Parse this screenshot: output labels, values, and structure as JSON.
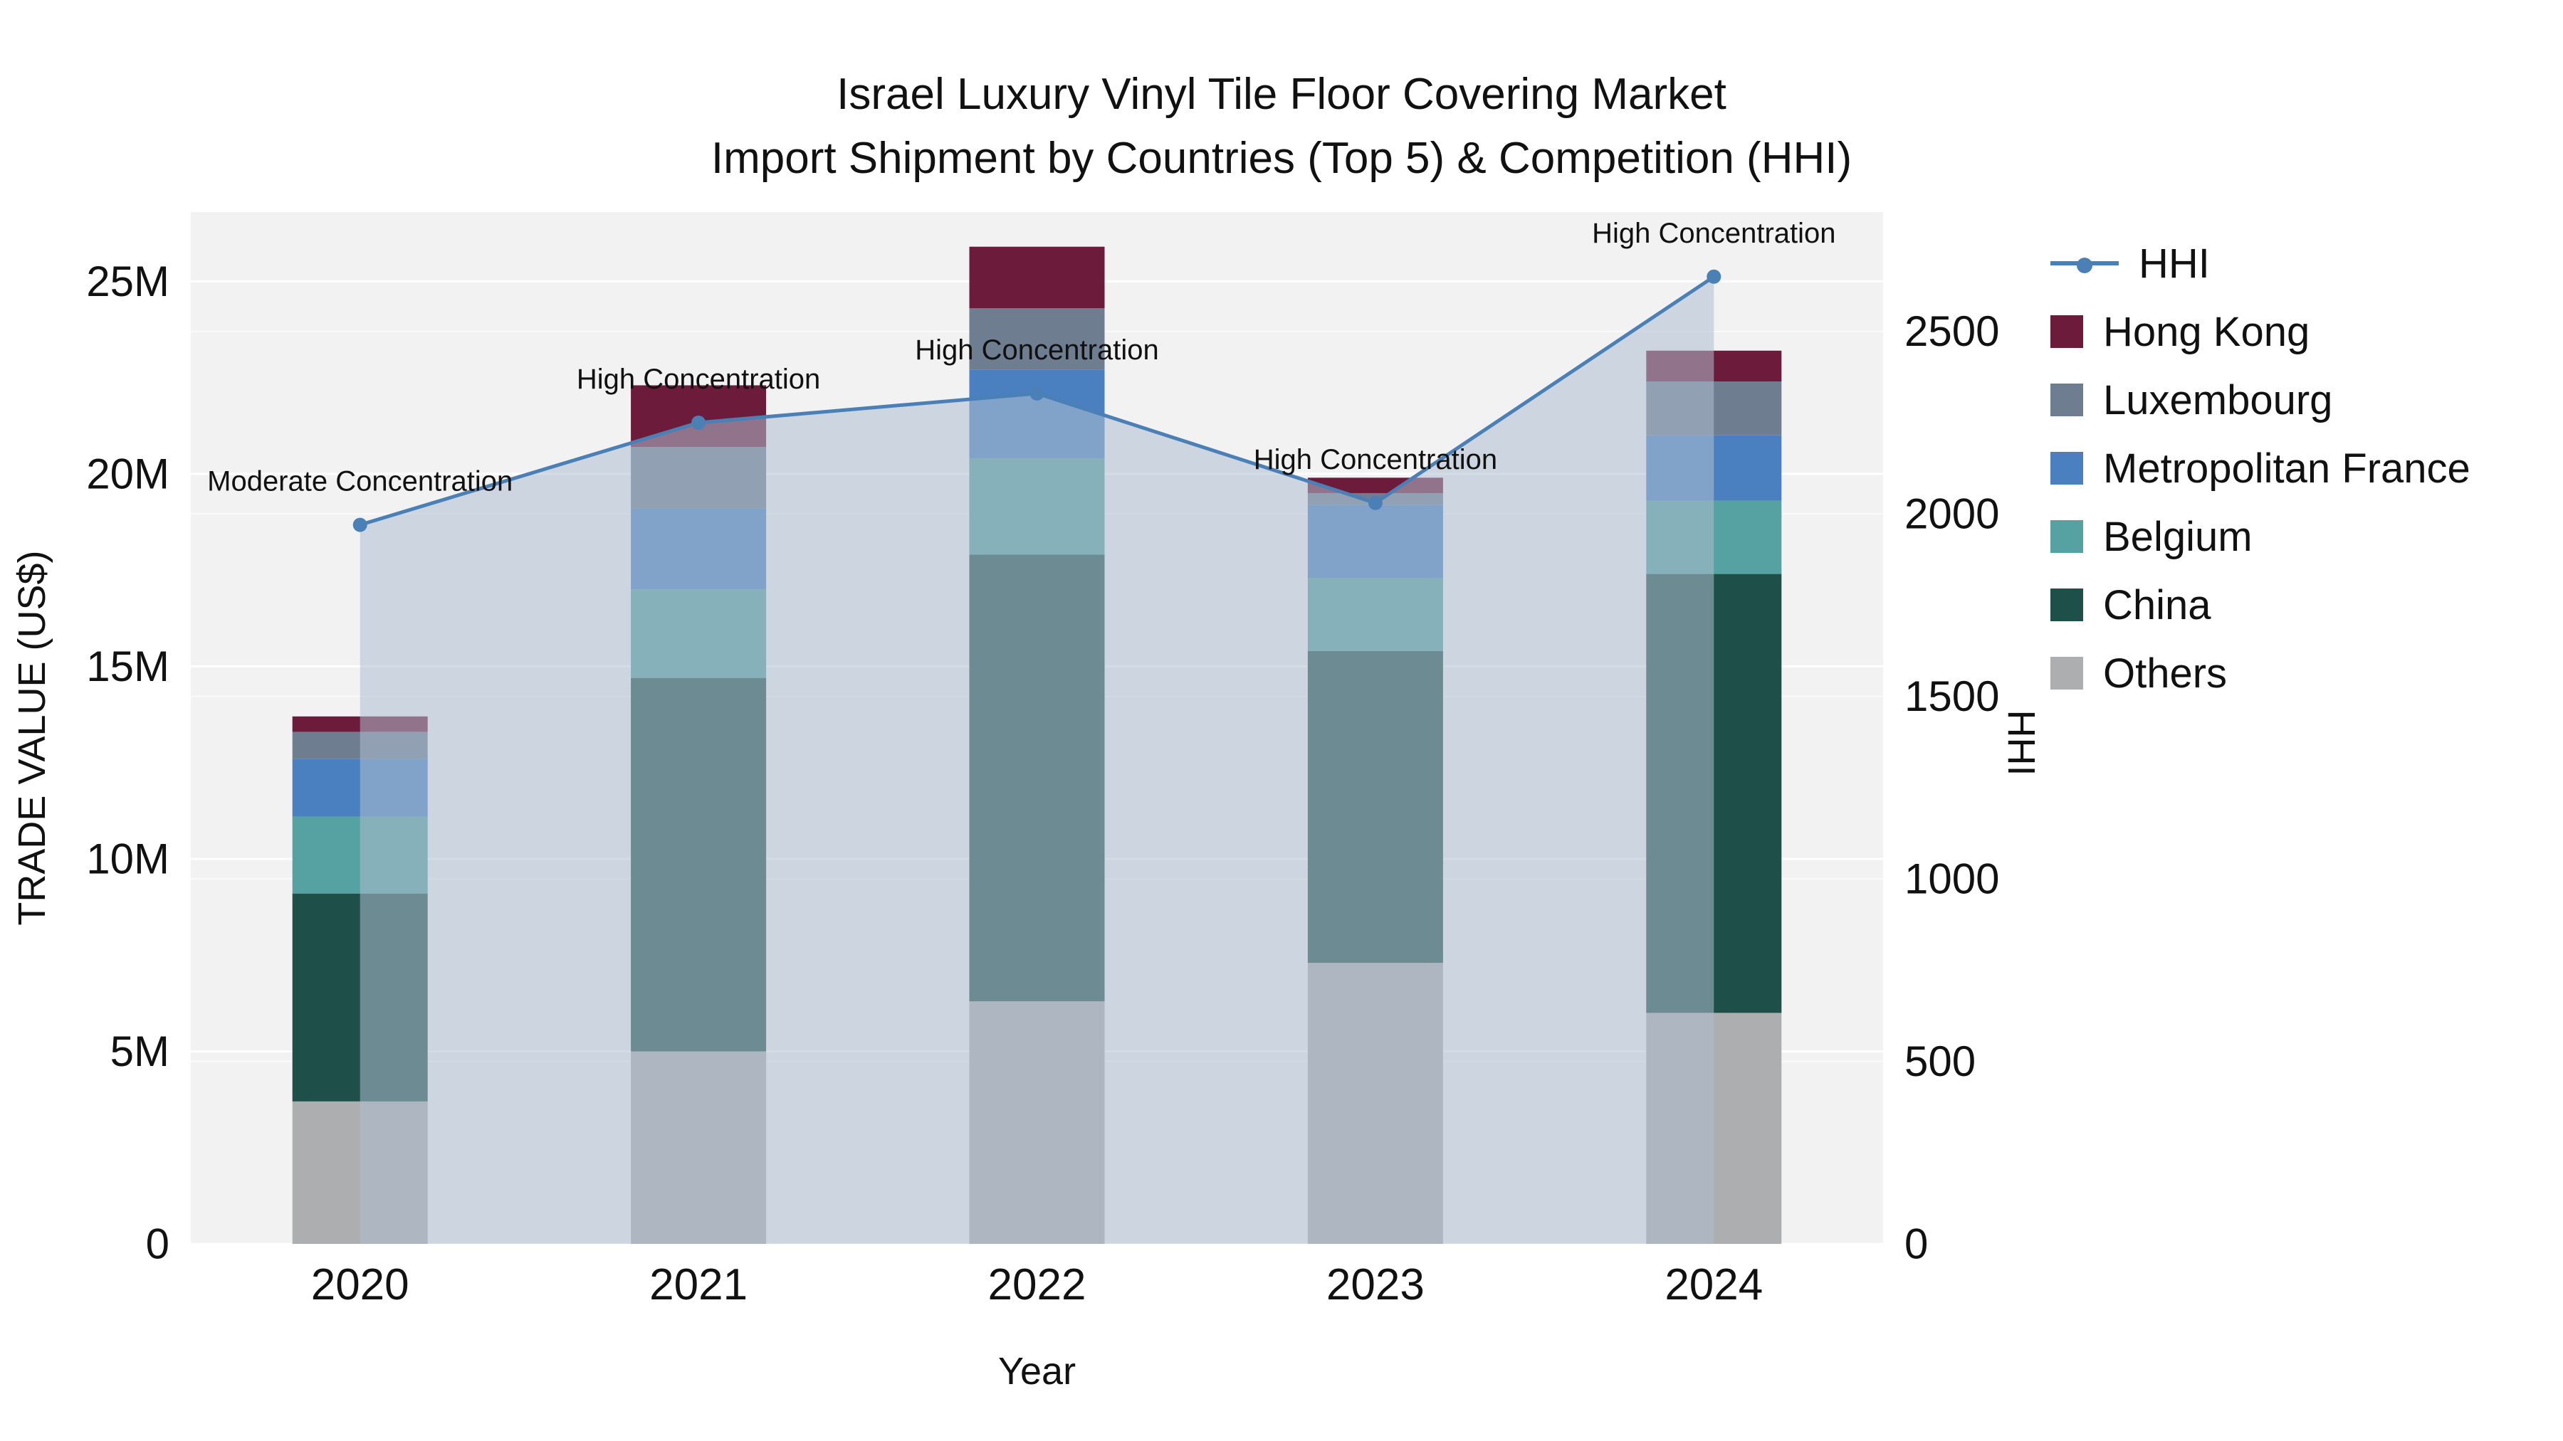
{
  "chart_data": {
    "type": "bar",
    "combo": "stacked-bar + line-with-area",
    "title": "Israel Luxury Vinyl Tile Floor Covering Market",
    "subtitle": "Import Shipment by Countries (Top 5) & Competition (HHI)",
    "xlabel": "Year",
    "ylabel_left": "TRADE VALUE (US$)",
    "ylabel_right": "HHI",
    "categories": [
      "2020",
      "2021",
      "2022",
      "2023",
      "2024"
    ],
    "bar_value_unit": "million US$",
    "bar_series": [
      {
        "name": "Others",
        "color": "#adaeb0",
        "values": [
          3.7,
          5.0,
          6.3,
          7.3,
          6.0
        ]
      },
      {
        "name": "China",
        "color": "#1e4f49",
        "values": [
          5.4,
          9.7,
          11.6,
          8.1,
          11.4
        ]
      },
      {
        "name": "Belgium",
        "color": "#56a1a1",
        "values": [
          2.0,
          2.3,
          2.5,
          1.9,
          1.9
        ]
      },
      {
        "name": "Metropolitan France",
        "color": "#4a80c0",
        "values": [
          1.5,
          2.1,
          2.3,
          1.9,
          1.7
        ]
      },
      {
        "name": "Luxembourg",
        "color": "#6e7d90",
        "values": [
          0.7,
          1.6,
          1.6,
          0.3,
          1.4
        ]
      },
      {
        "name": "Hong Kong",
        "color": "#6d1b3a",
        "values": [
          0.4,
          1.6,
          1.6,
          0.4,
          0.8
        ]
      }
    ],
    "line_series": {
      "name": "HHI",
      "color": "#4a80b5",
      "area_fill": "rgba(174,189,207,0.55)",
      "values": [
        1970,
        2250,
        2330,
        2030,
        2650
      ]
    },
    "annotations": [
      {
        "x": "2020",
        "text": "Moderate Concentration"
      },
      {
        "x": "2021",
        "text": "High Concentration"
      },
      {
        "x": "2022",
        "text": "High Concentration"
      },
      {
        "x": "2023",
        "text": "High Concentration"
      },
      {
        "x": "2024",
        "text": "High Concentration"
      }
    ],
    "y_left": {
      "ticks": [
        0,
        5,
        10,
        15,
        20,
        25
      ],
      "tick_labels": [
        "0",
        "5M",
        "10M",
        "15M",
        "20M",
        "25M"
      ],
      "max": 26.8
    },
    "y_right": {
      "ticks": [
        0,
        500,
        1000,
        1500,
        2000,
        2500
      ],
      "tick_labels": [
        "0",
        "500",
        "1000",
        "1500",
        "2000",
        "2500"
      ],
      "max": 2827
    },
    "plot_bg": "#f2f2f3",
    "grid_color": "#ffffff",
    "legend_position": "right"
  },
  "legend": {
    "items": [
      {
        "label": "HHI",
        "type": "line",
        "color": "#4a80b5"
      },
      {
        "label": "Hong Kong",
        "type": "square",
        "color": "#6d1b3a"
      },
      {
        "label": "Luxembourg",
        "type": "square",
        "color": "#6e7d90"
      },
      {
        "label": "Metropolitan France",
        "type": "square",
        "color": "#4a80c0"
      },
      {
        "label": "Belgium",
        "type": "square",
        "color": "#56a1a1"
      },
      {
        "label": "China",
        "type": "square",
        "color": "#1e4f49"
      },
      {
        "label": "Others",
        "type": "square",
        "color": "#adaeb0"
      }
    ]
  }
}
